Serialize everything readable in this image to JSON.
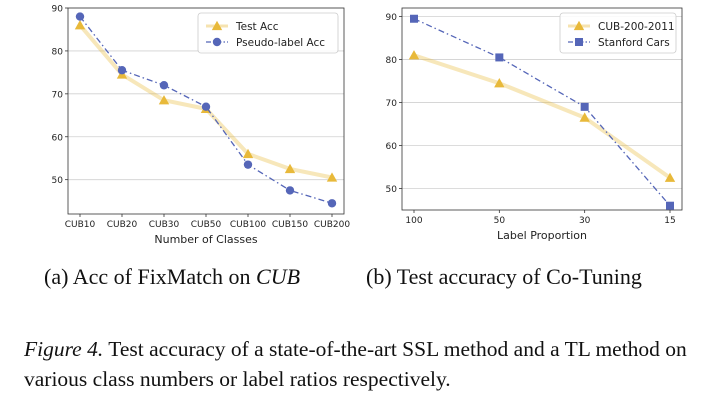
{
  "colors": {
    "test": "#e8b93a",
    "pseudo": "#5566b8",
    "grid": "#d0d0d0",
    "axis": "#333333"
  },
  "chart_data": [
    {
      "type": "line",
      "xlabel": "Number of Classes",
      "ylabel": "",
      "categories": [
        "CUB10",
        "CUB20",
        "CUB30",
        "CUB50",
        "CUB100",
        "CUB150",
        "CUB200"
      ],
      "ylim": [
        42,
        90
      ],
      "yticks": [
        50,
        60,
        70,
        80,
        90
      ],
      "legend_position": "top-right",
      "series": [
        {
          "name": "Test Acc",
          "marker": "triangle",
          "color": "#e8b93a",
          "values": [
            86.0,
            74.5,
            68.5,
            66.5,
            56.0,
            52.5,
            50.5
          ]
        },
        {
          "name": "Pseudo-label Acc",
          "marker": "circle",
          "color": "#5566b8",
          "values": [
            88.0,
            75.5,
            72.0,
            67.0,
            53.5,
            47.5,
            44.5
          ]
        }
      ]
    },
    {
      "type": "line",
      "xlabel": "Label Proportion",
      "ylabel": "",
      "categories": [
        "100",
        "50",
        "30",
        "15"
      ],
      "ylim": [
        45,
        92
      ],
      "yticks": [
        50,
        60,
        70,
        80,
        90
      ],
      "legend_position": "top-right",
      "series": [
        {
          "name": "CUB-200-2011",
          "marker": "triangle",
          "color": "#e8b93a",
          "values": [
            81.0,
            74.5,
            66.5,
            52.5
          ]
        },
        {
          "name": "Stanford Cars",
          "marker": "square",
          "color": "#5566b8",
          "values": [
            89.5,
            80.5,
            69.0,
            46.0
          ]
        }
      ]
    }
  ],
  "captions": {
    "a_label": "(a)",
    "a_text": "Acc of FixMatch on",
    "a_italic": "CUB",
    "b_label": "(b)",
    "b_text": "Test accuracy of Co-Tuning"
  },
  "figure_caption": {
    "label": "Figure 4.",
    "text": "Test accuracy of a state-of-the-art SSL method and a TL method on various class numbers or label ratios respectively."
  }
}
